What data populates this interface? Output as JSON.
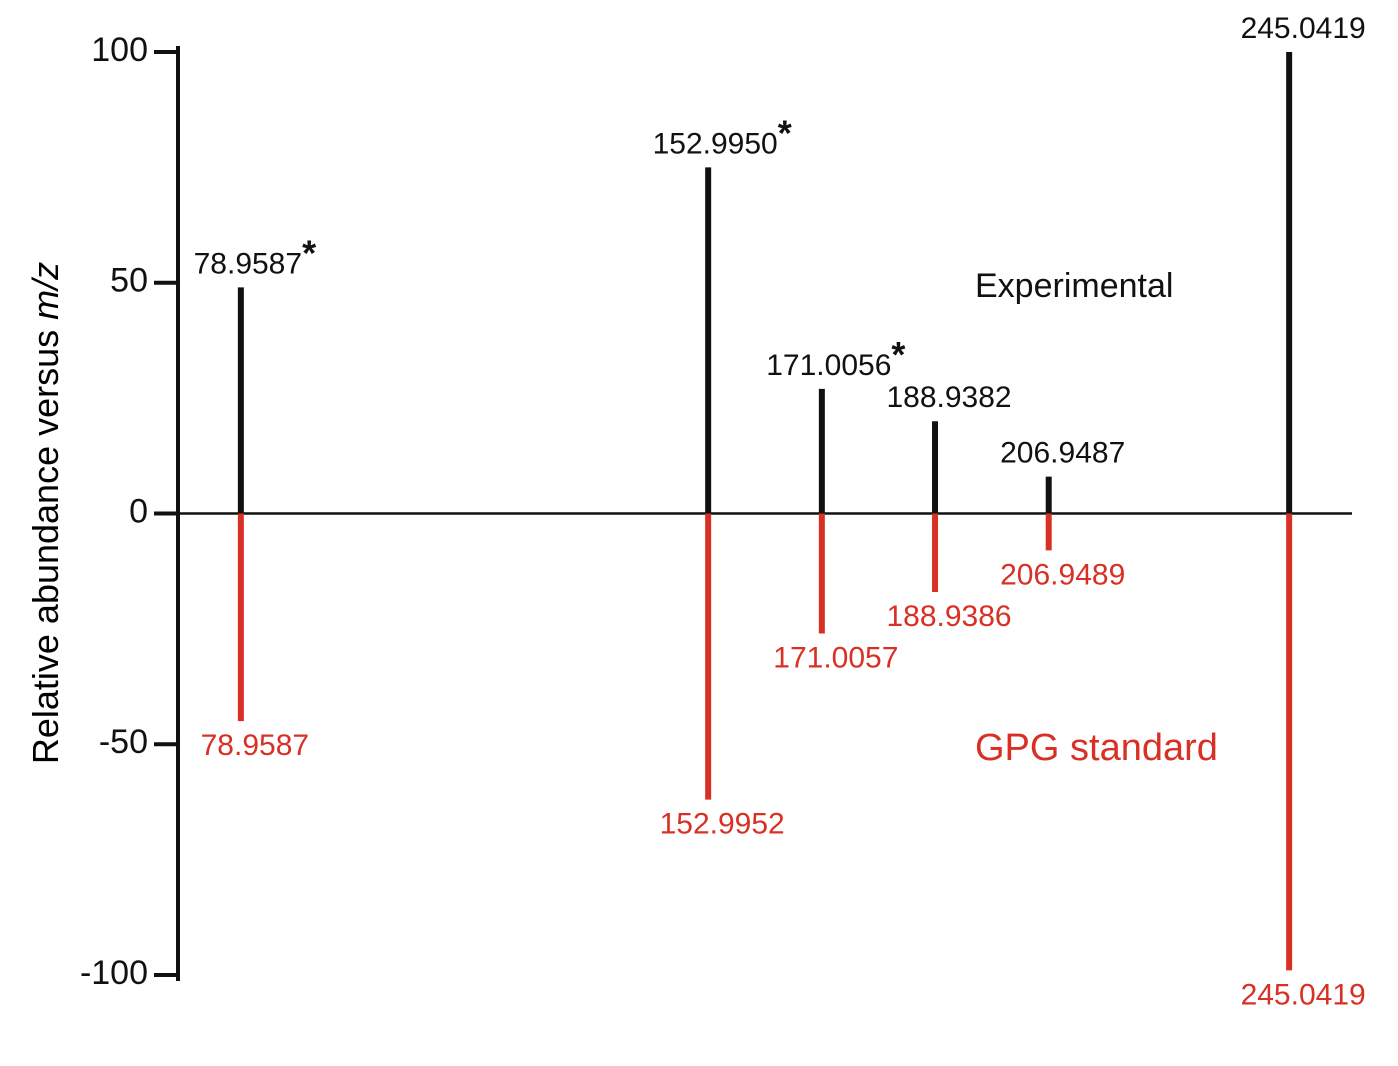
{
  "chart_data": {
    "type": "mirror-stem",
    "ylabel": "Relative abundance versus",
    "ylabel_unit": "m/z",
    "ylim": [
      -100,
      100
    ],
    "yticks": [
      100,
      50,
      0,
      -50,
      -100
    ],
    "xlim": [
      69,
      255
    ],
    "note_symbol": "*",
    "series": [
      {
        "name": "Experimental",
        "color": "#111111",
        "direction": "up",
        "x": [
          78.9587,
          152.995,
          171.0056,
          188.9382,
          206.9487,
          245.0419
        ],
        "x_labels": [
          "78.9587",
          "152.9950",
          "171.0056",
          "188.9382",
          "206.9487",
          "245.0419"
        ],
        "values": [
          49,
          75,
          27,
          20,
          8,
          100
        ],
        "noted": [
          true,
          true,
          true,
          false,
          false,
          false
        ]
      },
      {
        "name": "GPG standard",
        "color": "#d93025",
        "direction": "down",
        "x": [
          78.9587,
          152.9952,
          171.0057,
          188.9386,
          206.9489,
          245.0419
        ],
        "x_labels": [
          "78.9587",
          "152.9952",
          "171.0057",
          "188.9386",
          "206.9489",
          "245.0419"
        ],
        "values": [
          -45,
          -62,
          -26,
          -17,
          -8,
          -99
        ]
      }
    ]
  }
}
